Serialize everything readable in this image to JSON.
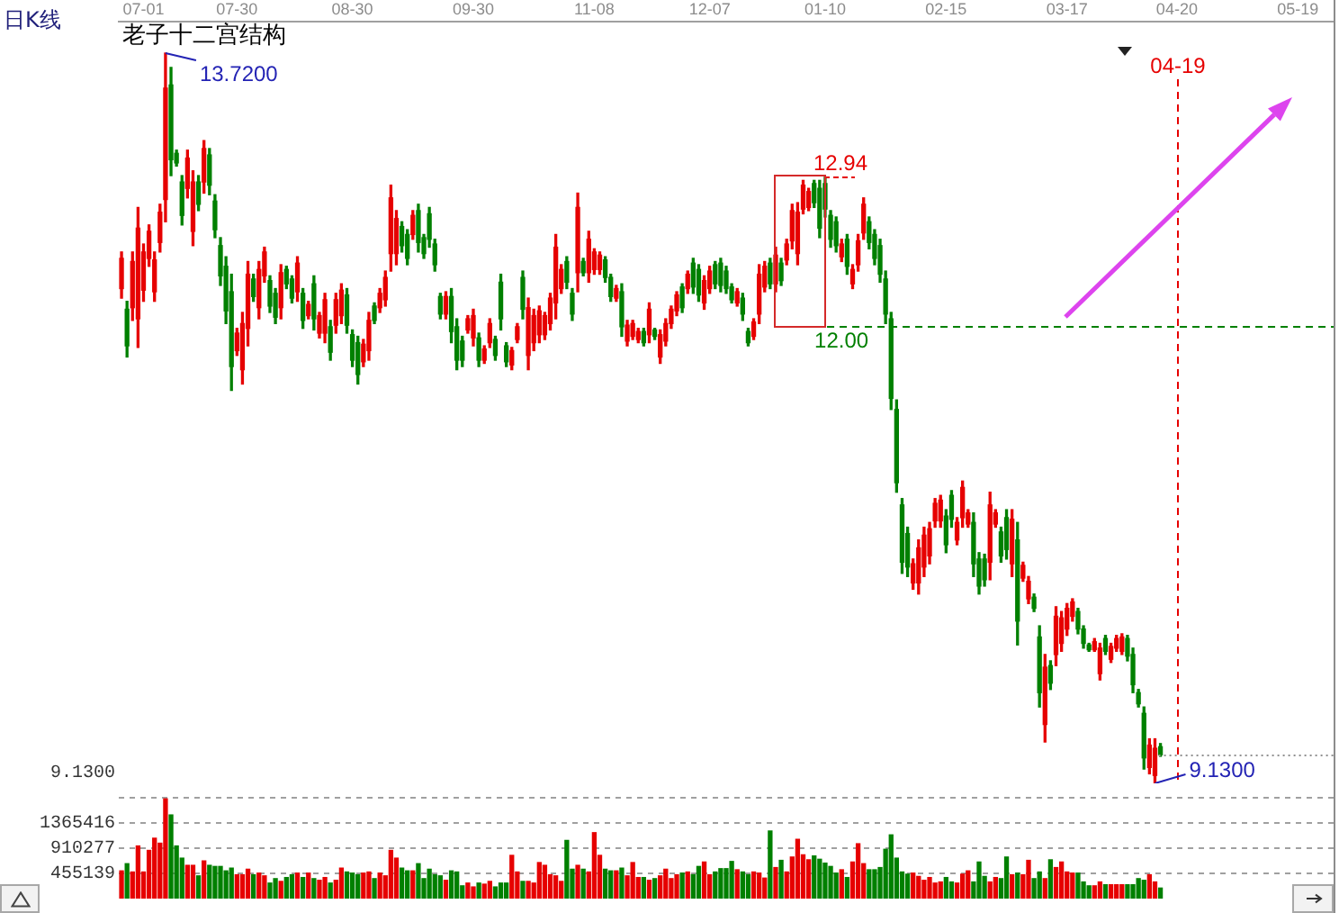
{
  "chart_data": [
    {
      "type": "candlestick",
      "title": "日K线",
      "subtitle": "老子十二宫结构",
      "categories": [
        null,
        null,
        null,
        null,
        "07-01",
        null,
        null,
        null,
        null,
        null,
        null,
        null,
        null,
        null,
        null,
        null,
        null,
        null,
        null,
        null,
        null,
        "07-30",
        null,
        null,
        null,
        null,
        null,
        null,
        null,
        null,
        null,
        null,
        null,
        null,
        null,
        null,
        null,
        null,
        null,
        null,
        null,
        null,
        "08-30",
        null,
        null,
        null,
        null,
        null,
        null,
        null,
        null,
        null,
        null,
        null,
        null,
        null,
        null,
        null,
        null,
        null,
        null,
        null,
        null,
        null,
        "09-30",
        null,
        null,
        null,
        null,
        null,
        null,
        null,
        null,
        null,
        null,
        null,
        null,
        null,
        null,
        null,
        null,
        null,
        null,
        null,
        null,
        null,
        "11-08",
        null,
        null,
        null,
        null,
        null,
        null,
        null,
        null,
        null,
        null,
        null,
        null,
        null,
        null,
        null,
        null,
        null,
        null,
        null,
        null,
        "12-07",
        null,
        null,
        null,
        null,
        null,
        null,
        null,
        null,
        null,
        null,
        null,
        null,
        null,
        null,
        null,
        null,
        null,
        null,
        null,
        null,
        "01-10",
        null,
        null,
        null,
        null,
        null,
        null,
        null,
        null,
        null,
        null,
        null,
        null,
        null,
        null,
        null,
        null,
        null,
        null,
        null,
        null,
        null,
        "02-15",
        null,
        null,
        null,
        null,
        null,
        null,
        null,
        null,
        null,
        null,
        null,
        null,
        null,
        null,
        null,
        null,
        null,
        null,
        null,
        null,
        null,
        "03-17",
        null,
        null,
        null,
        null,
        null,
        null,
        null,
        null,
        null,
        null,
        null,
        null,
        null,
        null,
        null,
        null,
        null,
        null,
        null,
        "04-20",
        null,
        null,
        null,
        null,
        null,
        null,
        null,
        null,
        null,
        null,
        null,
        null,
        null,
        null,
        null,
        null,
        null,
        null,
        null,
        null,
        null,
        "05-19",
        null,
        null,
        null,
        null,
        null,
        null
      ],
      "ohlc": [
        [
          12.24,
          12.47,
          12.18,
          12.43
        ],
        [
          12.11,
          12.16,
          11.81,
          11.88
        ],
        [
          12.12,
          12.47,
          12.04,
          12.41
        ],
        [
          12.05,
          12.75,
          11.87,
          12.62
        ],
        [
          12.23,
          12.52,
          12.16,
          12.47
        ],
        [
          12.43,
          12.64,
          12.38,
          12.6
        ],
        [
          12.22,
          12.47,
          12.16,
          12.42
        ],
        [
          12.53,
          12.77,
          12.47,
          12.72
        ],
        [
          12.8,
          13.72,
          12.66,
          13.5
        ],
        [
          13.52,
          13.63,
          12.95,
          13.05
        ],
        [
          13.09,
          13.11,
          13.01,
          13.03
        ],
        [
          12.91,
          12.95,
          12.64,
          12.7
        ],
        [
          12.87,
          13.11,
          12.81,
          13.06
        ],
        [
          12.6,
          12.98,
          12.51,
          12.91
        ],
        [
          12.91,
          12.95,
          12.73,
          12.77
        ],
        [
          12.91,
          13.17,
          12.84,
          13.12
        ],
        [
          13.08,
          13.12,
          12.83,
          12.89
        ],
        [
          12.79,
          12.83,
          12.56,
          12.61
        ],
        [
          12.51,
          12.56,
          12.26,
          12.32
        ],
        [
          12.38,
          12.44,
          12.02,
          12.1
        ],
        [
          12.22,
          12.33,
          11.6,
          11.75
        ],
        [
          11.85,
          11.99,
          11.82,
          11.96
        ],
        [
          11.73,
          12.09,
          11.64,
          12.02
        ],
        [
          11.99,
          12.41,
          11.88,
          12.33
        ],
        [
          12.3,
          12.33,
          12.16,
          12.19
        ],
        [
          12.12,
          12.41,
          12.05,
          12.36
        ],
        [
          12.32,
          12.5,
          12.28,
          12.47
        ],
        [
          12.29,
          12.32,
          12.09,
          12.13
        ],
        [
          12.21,
          12.24,
          12.02,
          12.06
        ],
        [
          12.12,
          12.39,
          12.05,
          12.34
        ],
        [
          12.36,
          12.38,
          12.24,
          12.27
        ],
        [
          12.3,
          12.32,
          12.15,
          12.18
        ],
        [
          12.22,
          12.44,
          12.16,
          12.4
        ],
        [
          12.21,
          12.24,
          11.99,
          12.04
        ],
        [
          12.07,
          12.16,
          12.05,
          12.14
        ],
        [
          12.27,
          12.32,
          11.98,
          12.05
        ],
        [
          11.96,
          12.09,
          11.93,
          12.07
        ],
        [
          11.96,
          12.21,
          11.9,
          12.17
        ],
        [
          12.0,
          12.04,
          11.79,
          11.84
        ],
        [
          12.01,
          12.21,
          11.96,
          12.17
        ],
        [
          12.07,
          12.27,
          12.02,
          12.23
        ],
        [
          12.2,
          12.24,
          11.96,
          12.01
        ],
        [
          11.95,
          11.98,
          11.75,
          11.79
        ],
        [
          11.9,
          11.94,
          11.64,
          11.7
        ],
        [
          11.78,
          11.92,
          11.75,
          11.89
        ],
        [
          11.85,
          12.09,
          11.79,
          12.04
        ],
        [
          12.13,
          12.15,
          12.02,
          12.04
        ],
        [
          12.12,
          12.24,
          12.09,
          12.21
        ],
        [
          12.17,
          12.35,
          12.13,
          12.31
        ],
        [
          12.46,
          12.89,
          12.35,
          12.81
        ],
        [
          12.46,
          12.73,
          12.39,
          12.68
        ],
        [
          12.63,
          12.66,
          12.47,
          12.51
        ],
        [
          12.58,
          12.61,
          12.39,
          12.43
        ],
        [
          12.58,
          12.73,
          12.55,
          12.7
        ],
        [
          12.73,
          12.77,
          12.47,
          12.53
        ],
        [
          12.56,
          12.58,
          12.43,
          12.46
        ],
        [
          12.71,
          12.75,
          12.5,
          12.55
        ],
        [
          12.52,
          12.55,
          12.35,
          12.39
        ],
        [
          12.19,
          12.21,
          12.05,
          12.08
        ],
        [
          12.08,
          12.22,
          12.05,
          12.19
        ],
        [
          12.19,
          12.24,
          11.9,
          11.97
        ],
        [
          12.0,
          12.05,
          11.73,
          11.79
        ],
        [
          11.91,
          11.94,
          11.75,
          11.79
        ],
        [
          11.98,
          12.07,
          11.96,
          12.05
        ],
        [
          11.93,
          12.11,
          11.88,
          12.07
        ],
        [
          11.93,
          11.96,
          11.75,
          11.79
        ],
        [
          11.79,
          11.88,
          11.77,
          11.86
        ],
        [
          11.9,
          12.05,
          11.87,
          12.02
        ],
        [
          11.92,
          11.94,
          11.79,
          11.82
        ],
        [
          12.28,
          12.33,
          11.98,
          12.05
        ],
        [
          11.88,
          11.9,
          11.75,
          11.78
        ],
        [
          11.76,
          11.87,
          11.73,
          11.85
        ],
        [
          11.92,
          12.02,
          11.9,
          12.0
        ],
        [
          12.31,
          12.35,
          12.05,
          12.11
        ],
        [
          11.82,
          12.18,
          11.73,
          12.12
        ],
        [
          11.9,
          12.11,
          11.85,
          12.07
        ],
        [
          11.95,
          12.13,
          11.9,
          12.1
        ],
        [
          11.95,
          12.09,
          11.92,
          12.07
        ],
        [
          12.02,
          12.21,
          11.98,
          12.18
        ],
        [
          12.15,
          12.58,
          12.05,
          12.5
        ],
        [
          12.24,
          12.39,
          12.21,
          12.36
        ],
        [
          12.41,
          12.44,
          12.24,
          12.28
        ],
        [
          12.21,
          12.24,
          12.04,
          12.08
        ],
        [
          12.34,
          12.84,
          12.22,
          12.75
        ],
        [
          12.41,
          12.43,
          12.32,
          12.34
        ],
        [
          12.34,
          12.6,
          12.28,
          12.55
        ],
        [
          12.36,
          12.49,
          12.33,
          12.47
        ],
        [
          12.36,
          12.47,
          12.33,
          12.45
        ],
        [
          12.42,
          12.44,
          12.28,
          12.31
        ],
        [
          12.31,
          12.33,
          12.16,
          12.19
        ],
        [
          12.18,
          12.26,
          12.16,
          12.24
        ],
        [
          12.22,
          12.27,
          11.94,
          12.0
        ],
        [
          11.91,
          12.04,
          11.88,
          12.01
        ],
        [
          11.94,
          12.04,
          11.92,
          12.02
        ],
        [
          11.92,
          11.99,
          11.9,
          11.97
        ],
        [
          11.97,
          11.99,
          11.88,
          11.9
        ],
        [
          11.95,
          12.15,
          11.9,
          12.11
        ],
        [
          11.98,
          11.99,
          11.92,
          11.94
        ],
        [
          11.81,
          11.98,
          11.77,
          11.95
        ],
        [
          11.91,
          12.05,
          11.88,
          12.02
        ],
        [
          12.02,
          12.13,
          11.99,
          12.11
        ],
        [
          12.1,
          12.22,
          12.07,
          12.2
        ],
        [
          12.25,
          12.27,
          12.09,
          12.12
        ],
        [
          12.24,
          12.35,
          12.21,
          12.33
        ],
        [
          12.4,
          12.43,
          12.21,
          12.25
        ],
        [
          12.36,
          12.39,
          12.16,
          12.2
        ],
        [
          12.15,
          12.32,
          12.11,
          12.29
        ],
        [
          12.24,
          12.38,
          12.21,
          12.35
        ],
        [
          12.39,
          12.41,
          12.24,
          12.27
        ],
        [
          12.4,
          12.43,
          12.22,
          12.26
        ],
        [
          12.35,
          12.38,
          12.21,
          12.24
        ],
        [
          12.25,
          12.27,
          12.15,
          12.17
        ],
        [
          12.15,
          12.24,
          12.13,
          12.22
        ],
        [
          12.18,
          12.21,
          12.04,
          12.08
        ],
        [
          11.97,
          11.99,
          11.88,
          11.9
        ],
        [
          11.94,
          12.05,
          11.92,
          12.03
        ],
        [
          12.08,
          12.39,
          12.02,
          12.33
        ],
        [
          12.25,
          12.41,
          12.22,
          12.38
        ],
        [
          12.4,
          12.43,
          12.24,
          12.27
        ],
        [
          12.27,
          12.5,
          12.22,
          12.45
        ],
        [
          12.4,
          12.43,
          12.26,
          12.29
        ],
        [
          12.42,
          12.55,
          12.39,
          12.52
        ],
        [
          12.54,
          12.77,
          12.49,
          12.73
        ],
        [
          12.46,
          12.78,
          12.39,
          12.72
        ],
        [
          12.74,
          12.92,
          12.71,
          12.89
        ],
        [
          12.75,
          12.87,
          12.73,
          12.85
        ],
        [
          12.9,
          12.92,
          12.75,
          12.78
        ],
        [
          12.87,
          12.92,
          12.56,
          12.62
        ],
        [
          12.9,
          12.94,
          12.69,
          12.74
        ],
        [
          12.7,
          12.73,
          12.5,
          12.55
        ],
        [
          12.66,
          12.69,
          12.47,
          12.51
        ],
        [
          12.44,
          12.55,
          12.41,
          12.52
        ],
        [
          12.55,
          12.58,
          12.33,
          12.38
        ],
        [
          12.27,
          12.39,
          12.24,
          12.36
        ],
        [
          12.39,
          12.58,
          12.35,
          12.54
        ],
        [
          12.59,
          12.81,
          12.55,
          12.77
        ],
        [
          12.66,
          12.69,
          12.49,
          12.53
        ],
        [
          12.58,
          12.61,
          12.39,
          12.43
        ],
        [
          12.51,
          12.55,
          12.28,
          12.33
        ],
        [
          12.3,
          12.35,
          12.02,
          12.08
        ],
        [
          12.05,
          12.09,
          11.48,
          11.55
        ],
        [
          11.48,
          11.54,
          10.96,
          11.02
        ],
        [
          10.88,
          10.92,
          10.45,
          10.52
        ],
        [
          10.7,
          10.74,
          10.43,
          10.49
        ],
        [
          10.39,
          10.54,
          10.35,
          10.51
        ],
        [
          10.39,
          10.66,
          10.32,
          10.61
        ],
        [
          10.49,
          10.74,
          10.43,
          10.69
        ],
        [
          10.56,
          10.77,
          10.51,
          10.73
        ],
        [
          10.78,
          10.92,
          10.74,
          10.89
        ],
        [
          10.78,
          10.94,
          10.74,
          10.91
        ],
        [
          10.81,
          10.85,
          10.58,
          10.63
        ],
        [
          10.94,
          10.97,
          10.74,
          10.79
        ],
        [
          10.66,
          10.8,
          10.63,
          10.77
        ],
        [
          10.8,
          11.03,
          10.74,
          10.99
        ],
        [
          10.76,
          10.85,
          10.74,
          10.83
        ],
        [
          10.77,
          10.83,
          10.43,
          10.51
        ],
        [
          10.54,
          10.58,
          10.32,
          10.37
        ],
        [
          10.54,
          10.57,
          10.37,
          10.41
        ],
        [
          10.52,
          10.96,
          10.41,
          10.88
        ],
        [
          10.76,
          10.85,
          10.74,
          10.83
        ],
        [
          10.71,
          10.74,
          10.52,
          10.56
        ],
        [
          10.8,
          10.85,
          10.54,
          10.6
        ],
        [
          10.51,
          10.85,
          10.43,
          10.79
        ],
        [
          10.66,
          10.77,
          10.0,
          10.15
        ],
        [
          10.42,
          10.52,
          10.4,
          10.5
        ],
        [
          10.29,
          10.43,
          10.26,
          10.4
        ],
        [
          10.3,
          10.32,
          10.21,
          10.23
        ],
        [
          10.05,
          10.12,
          9.61,
          9.7
        ],
        [
          9.5,
          9.94,
          9.39,
          9.86
        ],
        [
          9.87,
          9.9,
          9.72,
          9.76
        ],
        [
          9.94,
          10.24,
          9.87,
          10.18
        ],
        [
          10.01,
          10.21,
          9.96,
          10.17
        ],
        [
          10.1,
          10.26,
          10.06,
          10.23
        ],
        [
          10.18,
          10.29,
          10.15,
          10.27
        ],
        [
          10.21,
          10.23,
          10.07,
          10.1
        ],
        [
          10.1,
          10.12,
          9.98,
          10.01
        ],
        [
          10.0,
          10.01,
          9.96,
          9.97
        ],
        [
          9.97,
          10.04,
          9.96,
          10.02
        ],
        [
          9.82,
          10.01,
          9.78,
          9.98
        ],
        [
          10.04,
          10.06,
          9.94,
          9.96
        ],
        [
          9.91,
          10.01,
          9.89,
          9.99
        ],
        [
          9.98,
          10.06,
          9.96,
          10.04
        ],
        [
          9.96,
          10.07,
          9.94,
          10.05
        ],
        [
          10.04,
          10.06,
          9.9,
          9.93
        ],
        [
          9.94,
          9.98,
          9.7,
          9.75
        ],
        [
          9.7,
          9.72,
          9.61,
          9.63
        ],
        [
          9.57,
          9.61,
          9.22,
          9.29
        ],
        [
          9.23,
          9.41,
          9.19,
          9.37
        ],
        [
          9.18,
          9.41,
          9.13,
          9.35
        ],
        [
          9.36,
          9.38,
          9.3,
          9.31
        ],
        null,
        null,
        null,
        null,
        null,
        null,
        null,
        null,
        null,
        null,
        null,
        null,
        null,
        null,
        null,
        null,
        null,
        null,
        null,
        null,
        null,
        null,
        null,
        null,
        null,
        null,
        null,
        null,
        null,
        null,
        null
      ],
      "colors": [
        "#e60000",
        "#008000",
        "#e60000",
        "#e60000",
        "#e60000",
        "#e60000",
        "#e60000",
        "#e60000",
        "#e60000",
        "#008000",
        "#008000",
        "#008000",
        "#e60000",
        "#e60000",
        "#008000",
        "#e60000",
        "#008000",
        "#008000",
        "#008000",
        "#008000",
        "#008000",
        "#e60000",
        "#e60000",
        "#e60000",
        "#008000",
        "#e60000",
        "#e60000",
        "#008000",
        "#008000",
        "#e60000",
        "#008000",
        "#008000",
        "#e60000",
        "#008000",
        "#e60000",
        "#008000",
        "#e60000",
        "#e60000",
        "#008000",
        "#e60000",
        "#e60000",
        "#008000",
        "#008000",
        "#008000",
        "#e60000",
        "#e60000",
        "#008000",
        "#e60000",
        "#e60000",
        "#e60000",
        "#e60000",
        "#008000",
        "#008000",
        "#e60000",
        "#008000",
        "#008000",
        "#008000",
        "#008000",
        "#008000",
        "#e60000",
        "#008000",
        "#008000",
        "#008000",
        "#e60000",
        "#e60000",
        "#008000",
        "#e60000",
        "#e60000",
        "#008000",
        "#008000",
        "#008000",
        "#e60000",
        "#e60000",
        "#008000",
        "#e60000",
        "#e60000",
        "#e60000",
        "#e60000",
        "#e60000",
        "#e60000",
        "#e60000",
        "#008000",
        "#008000",
        "#e60000",
        "#008000",
        "#e60000",
        "#e60000",
        "#e60000",
        "#008000",
        "#008000",
        "#e60000",
        "#008000",
        "#e60000",
        "#e60000",
        "#e60000",
        "#008000",
        "#e60000",
        "#008000",
        "#e60000",
        "#e60000",
        "#e60000",
        "#e60000",
        "#008000",
        "#e60000",
        "#008000",
        "#008000",
        "#e60000",
        "#e60000",
        "#008000",
        "#008000",
        "#008000",
        "#008000",
        "#e60000",
        "#008000",
        "#008000",
        "#e60000",
        "#e60000",
        "#e60000",
        "#008000",
        "#e60000",
        "#008000",
        "#e60000",
        "#e60000",
        "#e60000",
        "#e60000",
        "#e60000",
        "#008000",
        "#008000",
        "#008000",
        "#008000",
        "#008000",
        "#e60000",
        "#008000",
        "#e60000",
        "#e60000",
        "#e60000",
        "#008000",
        "#008000",
        "#008000",
        "#008000",
        "#008000",
        "#008000",
        "#008000",
        "#008000",
        "#e60000",
        "#e60000",
        "#e60000",
        "#e60000",
        "#e60000",
        "#e60000",
        "#008000",
        "#008000",
        "#e60000",
        "#e60000",
        "#e60000",
        "#008000",
        "#008000",
        "#008000",
        "#e60000",
        "#e60000",
        "#008000",
        "#008000",
        "#e60000",
        "#008000",
        "#e60000",
        "#e60000",
        "#008000",
        "#008000",
        "#e60000",
        "#008000",
        "#e60000",
        "#e60000",
        "#e60000",
        "#e60000",
        "#008000",
        "#008000",
        "#008000",
        "#e60000",
        "#e60000",
        "#008000",
        "#e60000",
        "#e60000",
        "#e60000",
        "#008000",
        "#008000",
        "#008000",
        "#008000",
        "#e60000",
        "#e60000",
        "#008000",
        null,
        null,
        null,
        null,
        null,
        null,
        null,
        null,
        null,
        null,
        null,
        null,
        null,
        null,
        null,
        null,
        null,
        null,
        null,
        null,
        null,
        null,
        null,
        null,
        null,
        null,
        null,
        null,
        null,
        null,
        null
      ],
      "tick_labels": "x",
      "annotations": [
        "13.7200",
        "12.94",
        "9.1300",
        "9.1300"
      ],
      "ref_lines": [
        {
          "axis": "y",
          "value": 12.0,
          "label": "12.00",
          "color": "#008000",
          "line_style": "dashed"
        },
        {
          "axis": "y",
          "value": 9.31,
          "color": "#909090",
          "line_style": "dotted"
        },
        {
          "axis": "x",
          "value": "04-20",
          "label": "04-19",
          "color": "#e60000",
          "line_style": "dashed"
        }
      ]
    },
    {
      "type": "bar",
      "categories": [
        null,
        null,
        null,
        null,
        null,
        null,
        null,
        null,
        null,
        null,
        null,
        null,
        null,
        null,
        null,
        null,
        null,
        null,
        null,
        null,
        null,
        null,
        null,
        null,
        null,
        null,
        null,
        null,
        null,
        null,
        null,
        null,
        null,
        null,
        null,
        null,
        null,
        null,
        null,
        null,
        null,
        null,
        null,
        null,
        null,
        null,
        null,
        null,
        null,
        null,
        null,
        null,
        null,
        null,
        null,
        null,
        null,
        null,
        null,
        null,
        null,
        null,
        null,
        null,
        null,
        null,
        null,
        null,
        null,
        null,
        null,
        null,
        null,
        null,
        null,
        null,
        null,
        null,
        null,
        null,
        null,
        null,
        null,
        null,
        null,
        null,
        null,
        null,
        null,
        null,
        null,
        null,
        null,
        null,
        null,
        null,
        null,
        null,
        null,
        null,
        null,
        null,
        null,
        null,
        null,
        null,
        null,
        null,
        null,
        null,
        null,
        null,
        null,
        null,
        null,
        null,
        null,
        null,
        null,
        null,
        null,
        null,
        null,
        null,
        null,
        null,
        null,
        null,
        null,
        null,
        null,
        null,
        null,
        null,
        null,
        null,
        null,
        null,
        null,
        null,
        null,
        null,
        null,
        null,
        null,
        null,
        null,
        null,
        null,
        null,
        null,
        null,
        null,
        null,
        null,
        null,
        null,
        null,
        null,
        null,
        null,
        null,
        null,
        null,
        null,
        null,
        null,
        null,
        null,
        null,
        null,
        null,
        null,
        null,
        null,
        null,
        null,
        null,
        null,
        null,
        null,
        null,
        null,
        null,
        null,
        null,
        null,
        null,
        null,
        null,
        null,
        null,
        null,
        null,
        null,
        null,
        null,
        null,
        null,
        null,
        null,
        null,
        null,
        null,
        null,
        null,
        null,
        null,
        null,
        null,
        null,
        null,
        null,
        null,
        null,
        null,
        null,
        null,
        null,
        null,
        null
      ],
      "values": [
        500000,
        630000,
        480000,
        950000,
        480000,
        870000,
        1090000,
        1000000,
        1800000,
        1510000,
        950000,
        730000,
        600000,
        600000,
        410000,
        680000,
        600000,
        580000,
        580000,
        500000,
        550000,
        430000,
        430000,
        530000,
        430000,
        460000,
        410000,
        280000,
        360000,
        310000,
        380000,
        430000,
        460000,
        380000,
        460000,
        360000,
        330000,
        380000,
        280000,
        330000,
        550000,
        480000,
        460000,
        430000,
        460000,
        480000,
        360000,
        460000,
        410000,
        870000,
        730000,
        550000,
        500000,
        500000,
        630000,
        360000,
        530000,
        430000,
        410000,
        330000,
        500000,
        480000,
        230000,
        280000,
        210000,
        280000,
        260000,
        310000,
        210000,
        280000,
        280000,
        780000,
        480000,
        310000,
        310000,
        280000,
        650000,
        600000,
        430000,
        410000,
        310000,
        1050000,
        530000,
        600000,
        530000,
        480000,
        1190000,
        780000,
        530000,
        500000,
        500000,
        550000,
        410000,
        650000,
        380000,
        380000,
        330000,
        360000,
        410000,
        530000,
        360000,
        430000,
        460000,
        480000,
        430000,
        580000,
        660000,
        430000,
        480000,
        540000,
        540000,
        670000,
        520000,
        480000,
        430000,
        480000,
        460000,
        370000,
        1220000,
        560000,
        690000,
        480000,
        750000,
        1070000,
        790000,
        700000,
        770000,
        710000,
        640000,
        580000,
        460000,
        520000,
        380000,
        660000,
        990000,
        630000,
        520000,
        520000,
        560000,
        890000,
        1150000,
        730000,
        480000,
        440000,
        460000,
        400000,
        330000,
        380000,
        280000,
        300000,
        380000,
        300000,
        280000,
        440000,
        500000,
        300000,
        660000,
        400000,
        300000,
        380000,
        360000,
        750000,
        430000,
        460000,
        430000,
        690000,
        360000,
        480000,
        360000,
        700000,
        560000,
        660000,
        480000,
        460000,
        460000,
        300000,
        230000,
        230000,
        300000,
        250000,
        250000,
        250000,
        250000,
        250000,
        250000,
        360000,
        330000,
        430000,
        300000,
        190000,
        null,
        null,
        null,
        null,
        null,
        null,
        null,
        null,
        null,
        null,
        null,
        null,
        null,
        null,
        null,
        null,
        null,
        null,
        null,
        null,
        null,
        null,
        null,
        null,
        null,
        null,
        null,
        null,
        null,
        null,
        null
      ],
      "colors": [
        "#e60000",
        "#008000",
        "#e60000",
        "#e60000",
        "#e60000",
        "#e60000",
        "#e60000",
        "#e60000",
        "#e60000",
        "#008000",
        "#008000",
        "#008000",
        "#e60000",
        "#e60000",
        "#008000",
        "#e60000",
        "#008000",
        "#008000",
        "#008000",
        "#008000",
        "#008000",
        "#e60000",
        "#e60000",
        "#e60000",
        "#008000",
        "#e60000",
        "#e60000",
        "#008000",
        "#008000",
        "#e60000",
        "#008000",
        "#008000",
        "#e60000",
        "#008000",
        "#e60000",
        "#008000",
        "#e60000",
        "#e60000",
        "#008000",
        "#e60000",
        "#e60000",
        "#008000",
        "#008000",
        "#008000",
        "#e60000",
        "#e60000",
        "#008000",
        "#e60000",
        "#e60000",
        "#e60000",
        "#e60000",
        "#008000",
        "#008000",
        "#e60000",
        "#008000",
        "#008000",
        "#008000",
        "#008000",
        "#008000",
        "#e60000",
        "#008000",
        "#008000",
        "#008000",
        "#e60000",
        "#e60000",
        "#008000",
        "#e60000",
        "#e60000",
        "#008000",
        "#008000",
        "#008000",
        "#e60000",
        "#e60000",
        "#008000",
        "#e60000",
        "#e60000",
        "#e60000",
        "#e60000",
        "#e60000",
        "#e60000",
        "#e60000",
        "#008000",
        "#008000",
        "#e60000",
        "#008000",
        "#e60000",
        "#e60000",
        "#e60000",
        "#008000",
        "#008000",
        "#e60000",
        "#008000",
        "#e60000",
        "#e60000",
        "#e60000",
        "#008000",
        "#e60000",
        "#008000",
        "#e60000",
        "#e60000",
        "#e60000",
        "#e60000",
        "#008000",
        "#e60000",
        "#008000",
        "#008000",
        "#e60000",
        "#e60000",
        "#008000",
        "#008000",
        "#008000",
        "#008000",
        "#e60000",
        "#008000",
        "#008000",
        "#e60000",
        "#e60000",
        "#e60000",
        "#008000",
        "#e60000",
        "#008000",
        "#e60000",
        "#e60000",
        "#e60000",
        "#e60000",
        "#e60000",
        "#008000",
        "#008000",
        "#008000",
        "#008000",
        "#008000",
        "#e60000",
        "#008000",
        "#e60000",
        "#e60000",
        "#e60000",
        "#008000",
        "#008000",
        "#008000",
        "#008000",
        "#008000",
        "#008000",
        "#008000",
        "#008000",
        "#e60000",
        "#e60000",
        "#e60000",
        "#e60000",
        "#e60000",
        "#e60000",
        "#008000",
        "#008000",
        "#e60000",
        "#e60000",
        "#e60000",
        "#008000",
        "#008000",
        "#008000",
        "#e60000",
        "#e60000",
        "#008000",
        "#008000",
        "#e60000",
        "#008000",
        "#e60000",
        "#e60000",
        "#008000",
        "#008000",
        "#e60000",
        "#008000",
        "#e60000",
        "#e60000",
        "#e60000",
        "#e60000",
        "#008000",
        "#008000",
        "#008000",
        "#e60000",
        "#e60000",
        "#008000",
        "#e60000",
        "#e60000",
        "#e60000",
        "#008000",
        "#008000",
        "#008000",
        "#008000",
        "#e60000",
        "#e60000",
        "#008000",
        null,
        null,
        null,
        null,
        null,
        null,
        null,
        null,
        null,
        null,
        null,
        null,
        null,
        null,
        null,
        null,
        null,
        null,
        null,
        null,
        null,
        null,
        null,
        null,
        null,
        null,
        null,
        null,
        null,
        null,
        null
      ],
      "ylim": [
        0,
        1820556
      ],
      "yticks": [
        455139,
        910277,
        1365416,
        {
          "value": 1820556,
          "label": null
        }
      ],
      "grid": "y",
      "tick_labels": "y"
    }
  ]
}
